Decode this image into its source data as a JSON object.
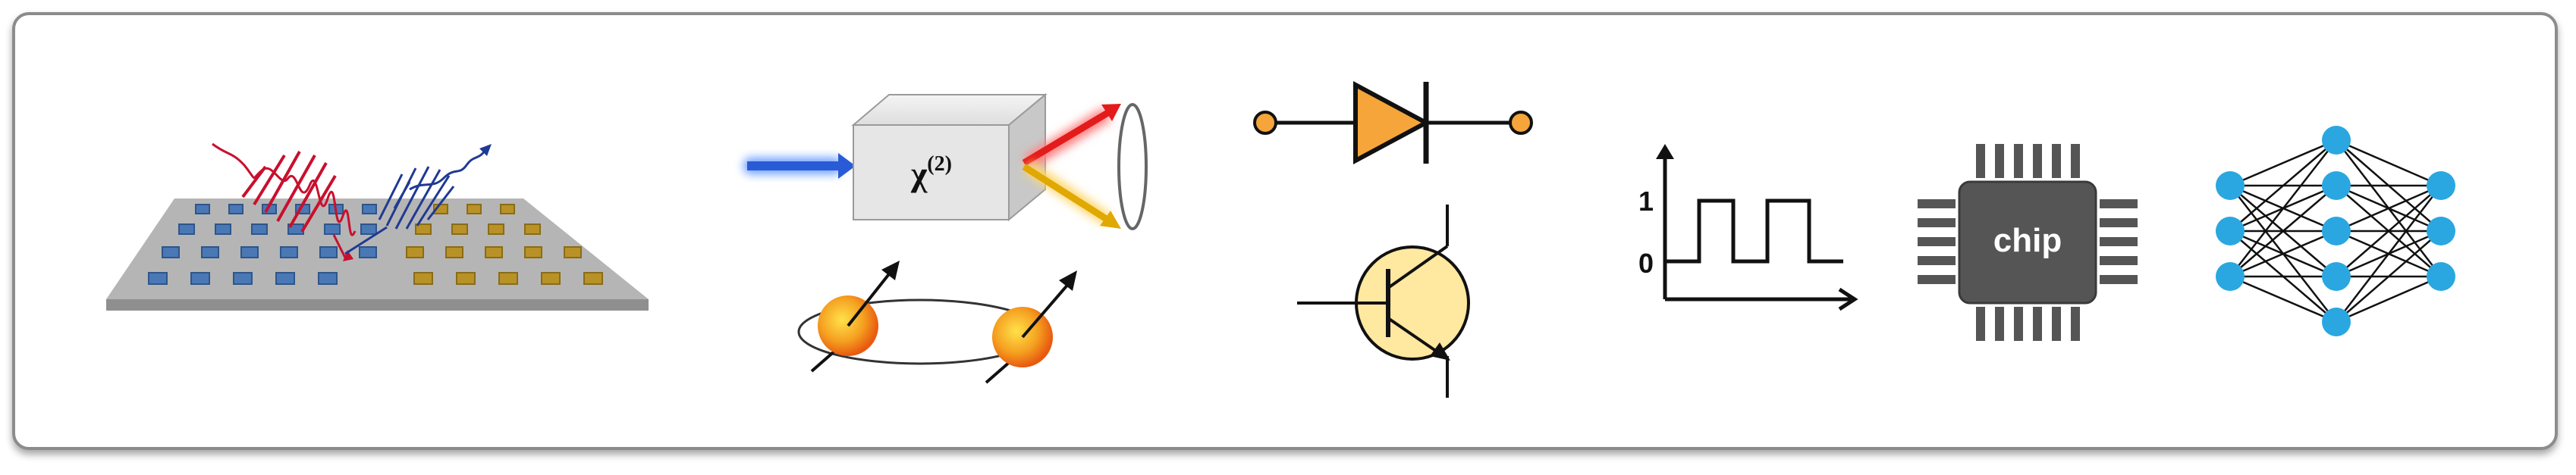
{
  "panels": {
    "metasurface": {
      "icon": "metasurface-with-light-pulses-icon"
    },
    "nonlinear": {
      "crystal_symbol": "χ",
      "crystal_superscript": "(2)",
      "icon": "nonlinear-crystal-icon"
    },
    "spins": {
      "icon": "coupled-spins-icon"
    },
    "diode": {
      "icon": "diode-symbol-icon"
    },
    "transistor": {
      "icon": "bjt-transistor-icon"
    },
    "signal": {
      "label_high": "1",
      "label_low": "0",
      "icon": "square-wave-signal-icon"
    },
    "chip": {
      "label": "chip",
      "icon": "chip-icon"
    },
    "neural_network": {
      "icon": "neural-network-icon"
    }
  },
  "colors": {
    "frame_border": "#8c8c8c",
    "blue_pulse": "#1f3a93",
    "red_pulse": "#c8102e",
    "blue_tile": "#4a78b5",
    "gold_tile": "#b89227",
    "diode_fill": "#f5a53a",
    "transistor_fill": "#ffe8a0",
    "chip_body": "#555555",
    "neuron": "#2aa7e0"
  }
}
